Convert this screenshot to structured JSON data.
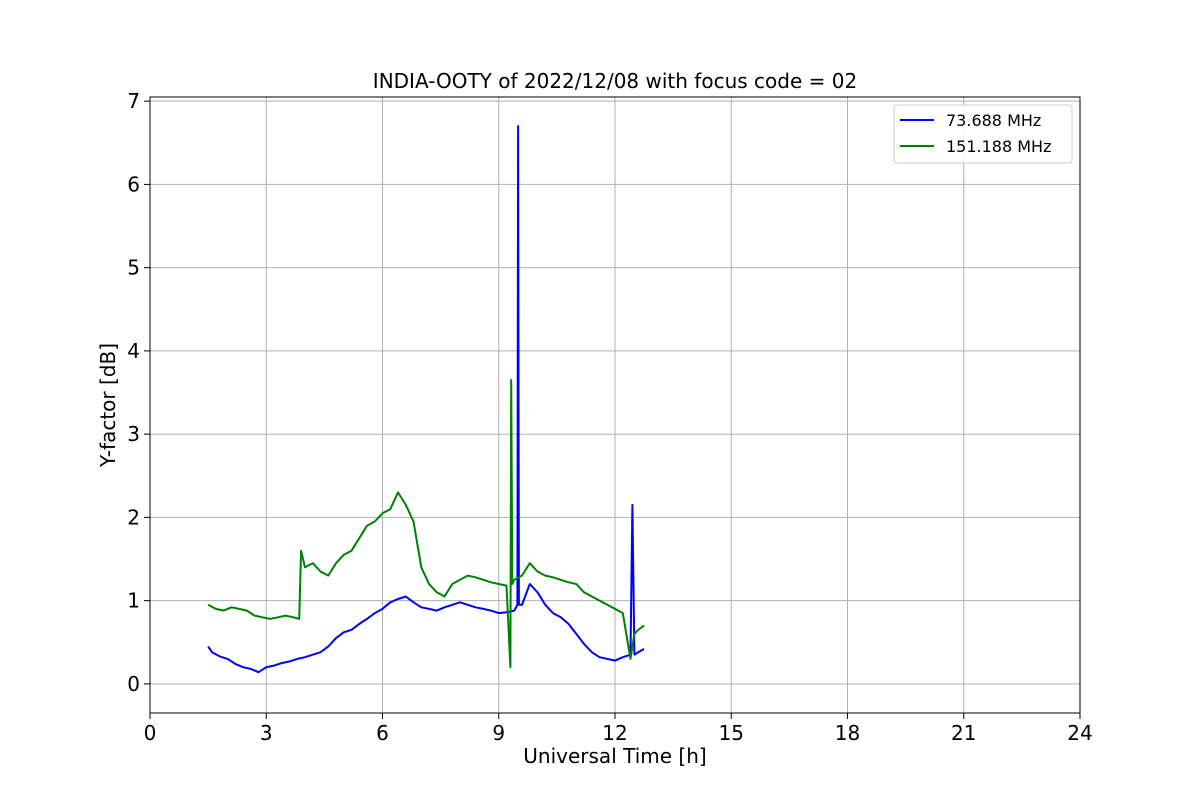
{
  "chart_data": {
    "type": "line",
    "title": "INDIA-OOTY of 2022/12/08 with focus code = 02",
    "xlabel": "Universal Time [h]",
    "ylabel": "Y-factor [dB]",
    "xlim": [
      0,
      24
    ],
    "ylim": [
      -0.35,
      7.05
    ],
    "xticks": [
      0,
      3,
      6,
      9,
      12,
      15,
      18,
      21,
      24
    ],
    "xtick_labels": [
      "0",
      "3",
      "6",
      "9",
      "12",
      "15",
      "18",
      "21",
      "24"
    ],
    "yticks": [
      0,
      1,
      2,
      3,
      4,
      5,
      6,
      7
    ],
    "ytick_labels": [
      "0",
      "1",
      "2",
      "3",
      "4",
      "5",
      "6",
      "7"
    ],
    "grid": true,
    "legend_position": "top-right",
    "series": [
      {
        "name": "  73.688 MHz",
        "color": "#0000ff",
        "x": [
          1.5,
          1.6,
          1.8,
          2.0,
          2.2,
          2.4,
          2.6,
          2.8,
          3.0,
          3.2,
          3.4,
          3.6,
          3.8,
          4.0,
          4.2,
          4.4,
          4.6,
          4.8,
          5.0,
          5.2,
          5.4,
          5.6,
          5.8,
          6.0,
          6.2,
          6.4,
          6.6,
          6.8,
          7.0,
          7.2,
          7.4,
          7.6,
          7.8,
          8.0,
          8.2,
          8.4,
          8.6,
          8.8,
          9.0,
          9.2,
          9.4,
          9.48,
          9.5,
          9.52,
          9.6,
          9.8,
          10.0,
          10.2,
          10.4,
          10.6,
          10.8,
          11.0,
          11.2,
          11.4,
          11.6,
          11.8,
          12.0,
          12.2,
          12.4,
          12.45,
          12.5,
          12.6,
          12.75
        ],
        "y": [
          0.45,
          0.38,
          0.33,
          0.3,
          0.24,
          0.2,
          0.18,
          0.14,
          0.2,
          0.22,
          0.25,
          0.27,
          0.3,
          0.32,
          0.35,
          0.38,
          0.45,
          0.55,
          0.62,
          0.65,
          0.72,
          0.78,
          0.85,
          0.9,
          0.98,
          1.02,
          1.05,
          0.98,
          0.92,
          0.9,
          0.88,
          0.92,
          0.95,
          0.98,
          0.95,
          0.92,
          0.9,
          0.88,
          0.85,
          0.86,
          0.88,
          0.95,
          6.7,
          0.95,
          0.95,
          1.2,
          1.1,
          0.95,
          0.85,
          0.8,
          0.72,
          0.6,
          0.48,
          0.38,
          0.32,
          0.3,
          0.28,
          0.32,
          0.35,
          2.15,
          0.35,
          0.38,
          0.42
        ]
      },
      {
        "name": "151.188 MHz",
        "color": "#008000",
        "x": [
          1.5,
          1.7,
          1.9,
          2.1,
          2.3,
          2.5,
          2.7,
          2.9,
          3.1,
          3.3,
          3.5,
          3.7,
          3.85,
          3.9,
          4.0,
          4.2,
          4.4,
          4.6,
          4.8,
          5.0,
          5.2,
          5.4,
          5.6,
          5.8,
          6.0,
          6.2,
          6.4,
          6.6,
          6.8,
          7.0,
          7.2,
          7.4,
          7.6,
          7.8,
          8.0,
          8.2,
          8.4,
          8.6,
          8.8,
          9.0,
          9.2,
          9.3,
          9.32,
          9.35,
          9.4,
          9.6,
          9.8,
          10.0,
          10.2,
          10.4,
          10.6,
          10.8,
          11.0,
          11.2,
          11.4,
          11.6,
          11.8,
          12.0,
          12.2,
          12.4,
          12.5,
          12.6,
          12.75
        ],
        "y": [
          0.95,
          0.9,
          0.88,
          0.92,
          0.9,
          0.88,
          0.82,
          0.8,
          0.78,
          0.8,
          0.82,
          0.8,
          0.78,
          1.6,
          1.4,
          1.45,
          1.35,
          1.3,
          1.45,
          1.55,
          1.6,
          1.75,
          1.9,
          1.95,
          2.05,
          2.1,
          2.3,
          2.15,
          1.95,
          1.4,
          1.2,
          1.1,
          1.05,
          1.2,
          1.25,
          1.3,
          1.28,
          1.25,
          1.22,
          1.2,
          1.18,
          0.2,
          3.65,
          1.2,
          1.25,
          1.3,
          1.45,
          1.35,
          1.3,
          1.28,
          1.25,
          1.22,
          1.2,
          1.1,
          1.05,
          1.0,
          0.95,
          0.9,
          0.85,
          0.3,
          0.6,
          0.65,
          0.7
        ]
      }
    ]
  }
}
